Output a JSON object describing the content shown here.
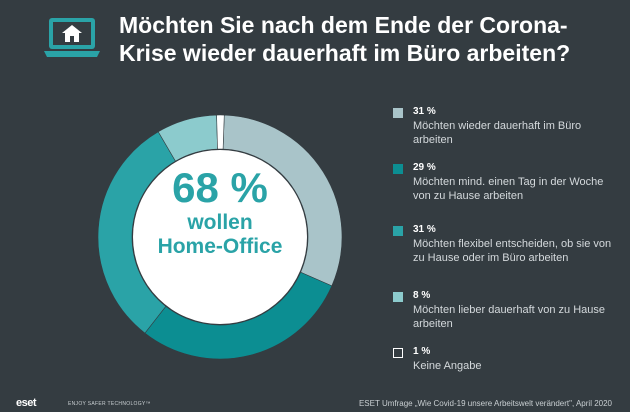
{
  "header": {
    "icon": "laptop-home-icon",
    "title_line1": "Möchten Sie nach dem Ende der Corona-",
    "title_line2": "Krise wieder dauerhaft im Büro arbeiten?"
  },
  "center": {
    "big": "68 %",
    "line1": "wollen",
    "line2": "Home-Office"
  },
  "chart_data": {
    "type": "pie",
    "donut": true,
    "title": "Möchten Sie nach dem Ende der Corona-Krise wieder dauerhaft im Büro arbeiten?",
    "categories": [
      "Möchten wieder dauerhaft im Büro arbeiten",
      "Möchten mind. einen Tag in der Woche von zu Hause arbeiten",
      "Möchten flexibel entscheiden, ob sie von zu Hause oder im Büro arbeiten",
      "Möchten lieber dauerhaft von zu Hause arbeiten",
      "Keine Angabe"
    ],
    "values": [
      31,
      29,
      31,
      8,
      1
    ],
    "unit": "%",
    "colors": [
      "#a9c4c9",
      "#0c8e92",
      "#2aa3a7",
      "#8ccbcd",
      "#ffffff"
    ],
    "legend_position": "right"
  },
  "legend": [
    {
      "pct": "31 %",
      "label": "Möchten wieder dauerhaft im Büro arbeiten",
      "color": "#a9c4c9",
      "outline": false
    },
    {
      "pct": "29 %",
      "label": "Möchten mind. einen Tag in der Woche von zu Hause arbeiten",
      "color": "#0c8e92",
      "outline": false
    },
    {
      "pct": "31 %",
      "label": "Möchten flexibel entscheiden, ob sie von zu Hause oder im Büro arbeiten",
      "color": "#2aa3a7",
      "outline": false
    },
    {
      "pct": "8 %",
      "label": "Möchten lieber dauerhaft von zu Hause arbeiten",
      "color": "#8ccbcd",
      "outline": false
    },
    {
      "pct": "1 %",
      "label": "Keine Angabe",
      "color": "#343c41",
      "outline": true
    }
  ],
  "footer": {
    "logo": "eset",
    "tagline": "ENJOY SAFER TECHNOLOGY™",
    "source": "ESET Umfrage „Wie Covid-19 unsere Arbeitswelt verändert\", April 2020"
  },
  "colors": {
    "background": "#343c41",
    "accent": "#2aa3a7"
  }
}
